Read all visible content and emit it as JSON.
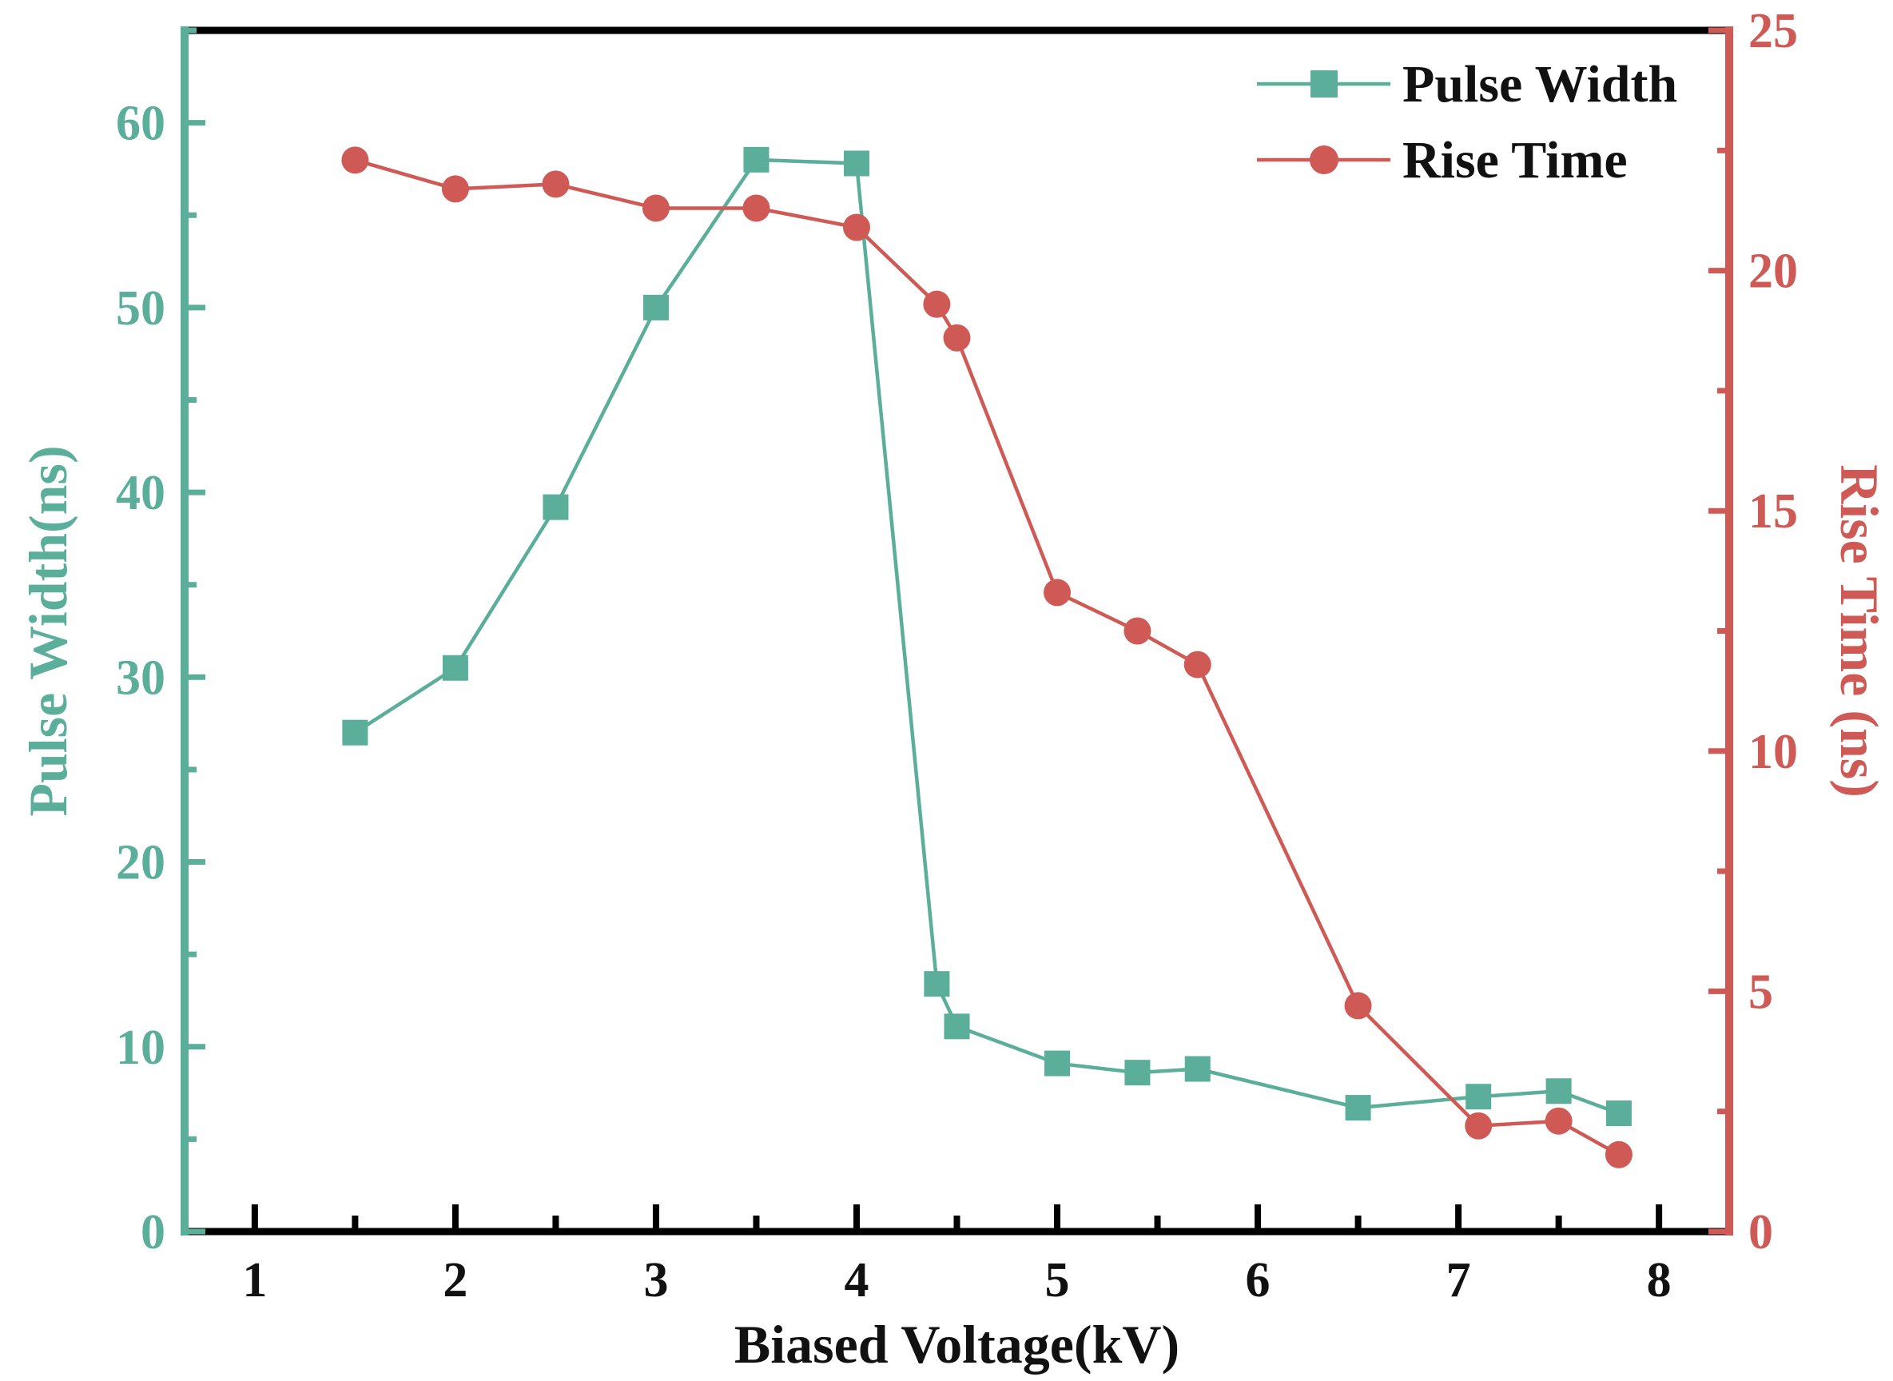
{
  "chart_data": {
    "type": "line",
    "title": "",
    "xlabel": "Biased Voltage(kV)",
    "ylabel_left": "Pulse Width(ns)",
    "ylabel_right": "Rise Time (ns)",
    "xlim": [
      0.65,
      8.35
    ],
    "ylim_left": [
      0,
      65
    ],
    "ylim_right": [
      0,
      25
    ],
    "x_ticks": [
      "1",
      "2",
      "3",
      "4",
      "5",
      "6",
      "7",
      "8"
    ],
    "y_left_ticks": [
      "0",
      "10",
      "20",
      "30",
      "40",
      "50",
      "60"
    ],
    "y_right_ticks": [
      "0",
      "5",
      "10",
      "15",
      "20",
      "25"
    ],
    "grid": false,
    "legend_position": "top-right",
    "series": [
      {
        "name": "Pulse Width",
        "axis": "left",
        "marker": "square",
        "color": "#5aae9a",
        "x": [
          1.5,
          2.0,
          2.5,
          3.0,
          3.5,
          4.0,
          4.4,
          4.5,
          5.0,
          5.4,
          5.7,
          6.5,
          7.1,
          7.5,
          7.8
        ],
        "y": [
          27.0,
          30.5,
          39.2,
          50.0,
          58.0,
          57.8,
          13.4,
          11.1,
          9.1,
          8.6,
          8.8,
          6.7,
          7.3,
          7.6,
          6.4
        ]
      },
      {
        "name": "Rise Time",
        "axis": "right",
        "marker": "circle",
        "color": "#cf5a55",
        "x": [
          1.5,
          2.0,
          2.5,
          3.0,
          3.5,
          4.0,
          4.4,
          4.5,
          5.0,
          5.4,
          5.7,
          6.5,
          7.1,
          7.5,
          7.8
        ],
        "y": [
          22.3,
          21.7,
          21.8,
          21.3,
          21.3,
          20.9,
          19.3,
          18.6,
          13.3,
          12.5,
          11.8,
          4.7,
          2.2,
          2.3,
          1.6
        ]
      }
    ]
  }
}
